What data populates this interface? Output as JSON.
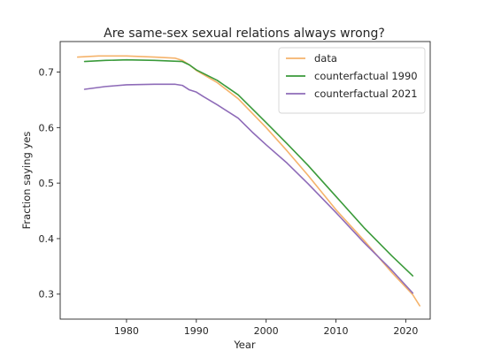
{
  "chart_data": {
    "type": "line",
    "title": "Are same-sex sexual relations always wrong?",
    "xlabel": "Year",
    "ylabel": "Fraction saying yes",
    "xlim": [
      1970.5,
      2023.5
    ],
    "ylim": [
      0.255,
      0.755
    ],
    "xticks": [
      1980,
      1990,
      2000,
      2010,
      2020
    ],
    "yticks": [
      0.3,
      0.4,
      0.5,
      0.6,
      0.7
    ],
    "grid": false,
    "legend_position": "top-right",
    "series": [
      {
        "name": "data",
        "color": "#f5b36b",
        "points": [
          [
            1973,
            0.727
          ],
          [
            1976,
            0.729
          ],
          [
            1980,
            0.729
          ],
          [
            1984,
            0.727
          ],
          [
            1987,
            0.725
          ],
          [
            1988,
            0.721
          ],
          [
            1989,
            0.713
          ],
          [
            1990,
            0.703
          ],
          [
            1993,
            0.681
          ],
          [
            1996,
            0.652
          ],
          [
            2000,
            0.6
          ],
          [
            2003,
            0.558
          ],
          [
            2006,
            0.514
          ],
          [
            2010,
            0.452
          ],
          [
            2014,
            0.397
          ],
          [
            2018,
            0.339
          ],
          [
            2021,
            0.299
          ],
          [
            2022,
            0.279
          ]
        ]
      },
      {
        "name": "counterfactual 1990",
        "color": "#3a9a3a",
        "points": [
          [
            1974,
            0.719
          ],
          [
            1977,
            0.721
          ],
          [
            1980,
            0.722
          ],
          [
            1984,
            0.721
          ],
          [
            1988,
            0.719
          ],
          [
            1989,
            0.713
          ],
          [
            1990,
            0.704
          ],
          [
            1993,
            0.685
          ],
          [
            1996,
            0.659
          ],
          [
            2000,
            0.609
          ],
          [
            2003,
            0.571
          ],
          [
            2006,
            0.532
          ],
          [
            2010,
            0.476
          ],
          [
            2014,
            0.42
          ],
          [
            2018,
            0.369
          ],
          [
            2021,
            0.333
          ]
        ]
      },
      {
        "name": "counterfactual 2021",
        "color": "#8e6bb8",
        "points": [
          [
            1974,
            0.669
          ],
          [
            1977,
            0.674
          ],
          [
            1980,
            0.677
          ],
          [
            1984,
            0.678
          ],
          [
            1987,
            0.678
          ],
          [
            1988,
            0.676
          ],
          [
            1989,
            0.668
          ],
          [
            1990,
            0.664
          ],
          [
            1991,
            0.656
          ],
          [
            1993,
            0.641
          ],
          [
            1996,
            0.617
          ],
          [
            1998,
            0.592
          ],
          [
            2000,
            0.569
          ],
          [
            2003,
            0.536
          ],
          [
            2006,
            0.499
          ],
          [
            2010,
            0.447
          ],
          [
            2014,
            0.393
          ],
          [
            2018,
            0.343
          ],
          [
            2021,
            0.302
          ]
        ]
      }
    ]
  }
}
